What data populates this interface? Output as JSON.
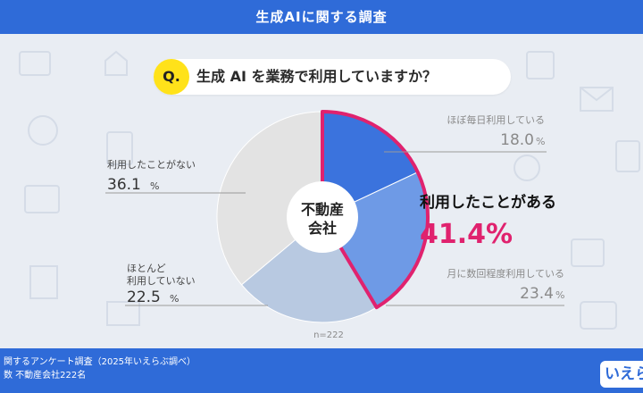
{
  "header": {
    "title": "生成AIに関する調査"
  },
  "question": {
    "badge": "Q.",
    "text": "生成 AI を業務で利用していますか？"
  },
  "chart_data": {
    "type": "pie",
    "center_label_line1": "不動産",
    "center_label_line2": "会社",
    "n_label": "n=222",
    "slices": [
      {
        "label": "ほぼ毎日利用している",
        "value": 18.0,
        "value_text": "18.0",
        "color": "#3b73dd"
      },
      {
        "label": "月に数回程度利用している",
        "value": 23.4,
        "value_text": "23.4",
        "color": "#6e9ae6"
      },
      {
        "label_line1": "ほとんど",
        "label_line2": "利用していない",
        "value": 22.5,
        "value_text": "22.5",
        "color": "#b8c9e1"
      },
      {
        "label": "利用したことがない",
        "value": 36.1,
        "value_text": "36.1",
        "color": "#e3e3e3"
      }
    ],
    "percent_sign": "%",
    "highlight": {
      "label": "利用したことがある",
      "value": 41.4,
      "value_text": "41.4%",
      "color": "#e0226e"
    }
  },
  "footer": {
    "line1": "関するアンケート調査（2025年いえらぶ調べ）",
    "line2": "数 不動産会社222名",
    "logo": "いえら"
  }
}
